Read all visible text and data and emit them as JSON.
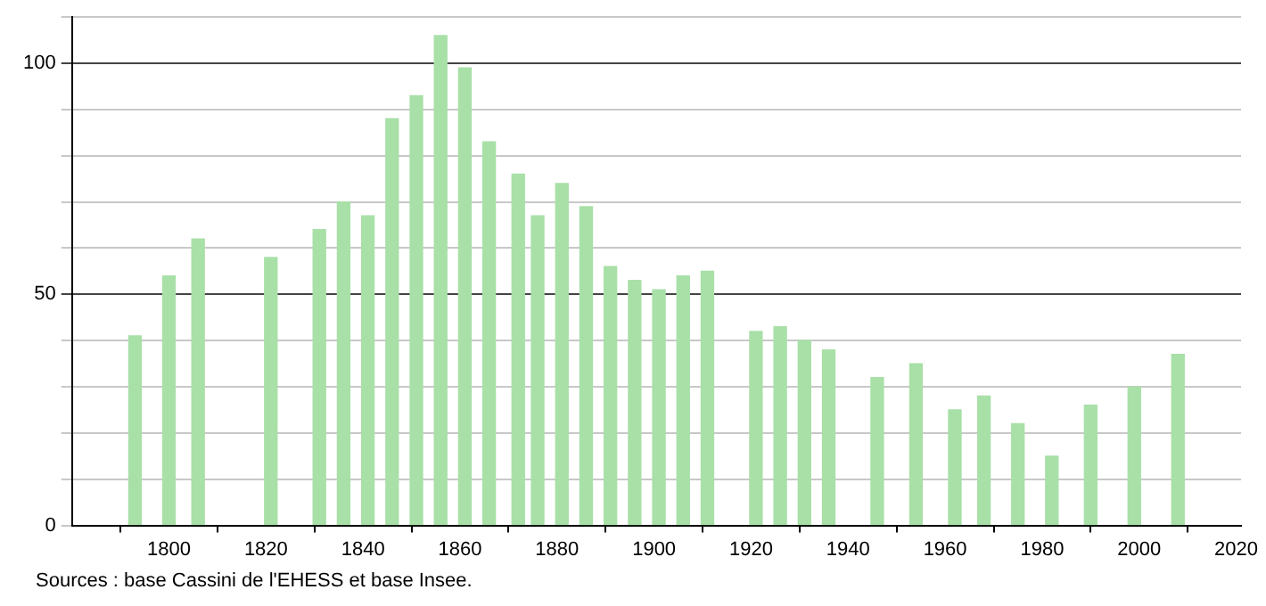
{
  "chart_data": {
    "type": "bar",
    "x": [
      1793,
      1800,
      1806,
      1821,
      1831,
      1836,
      1841,
      1846,
      1851,
      1856,
      1861,
      1866,
      1872,
      1876,
      1881,
      1886,
      1891,
      1896,
      1901,
      1906,
      1911,
      1921,
      1926,
      1931,
      1936,
      1946,
      1954,
      1962,
      1968,
      1975,
      1982,
      1990,
      1999,
      2008
    ],
    "values": [
      41,
      54,
      62,
      58,
      64,
      70,
      67,
      88,
      93,
      106,
      99,
      83,
      76,
      67,
      74,
      69,
      56,
      53,
      51,
      54,
      55,
      42,
      43,
      40,
      38,
      32,
      35,
      25,
      28,
      22,
      15,
      26,
      30,
      37
    ],
    "color": "#a8e0a8",
    "xlim": [
      1780,
      2021
    ],
    "xticks": [
      1800,
      1820,
      1840,
      1860,
      1880,
      1900,
      1920,
      1940,
      1960,
      1980,
      2000,
      2020
    ],
    "ylim": [
      0,
      110
    ],
    "yticks": [
      0,
      {
        "value": 10,
        "label": null
      },
      {
        "value": 20,
        "label": null
      },
      {
        "value": 30,
        "label": null
      },
      {
        "value": 40,
        "label": null
      },
      50,
      {
        "value": 60,
        "label": null
      },
      {
        "value": 70,
        "label": null
      },
      {
        "value": 80,
        "label": null
      },
      {
        "value": 90,
        "label": null
      },
      100,
      {
        "value": 110,
        "label": null
      }
    ],
    "grid": "y",
    "legend": false,
    "annotations": [
      "Sources : base Cassini de l'EHESS et base Insee."
    ]
  }
}
